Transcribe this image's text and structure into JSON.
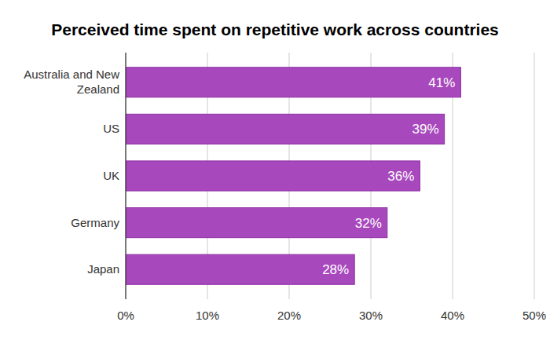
{
  "chart_data": {
    "type": "bar",
    "orientation": "horizontal",
    "title": "Perceived time spent on repetitive work across countries",
    "categories": [
      "Australia and New Zealand",
      "US",
      "UK",
      "Germany",
      "Japan"
    ],
    "values": [
      41,
      39,
      36,
      32,
      28
    ],
    "value_labels": [
      "41%",
      "39%",
      "36%",
      "32%",
      "28%"
    ],
    "color": "#a848bd",
    "xlim": [
      0,
      50
    ],
    "xticks": [
      {
        "value": 0,
        "label": "0%"
      },
      {
        "value": 10,
        "label": "10%"
      },
      {
        "value": 20,
        "label": "20%"
      },
      {
        "value": 30,
        "label": "30%"
      },
      {
        "value": 40,
        "label": "40%"
      },
      {
        "value": 50,
        "label": "50%"
      }
    ],
    "grid": true,
    "data_labels": true
  }
}
